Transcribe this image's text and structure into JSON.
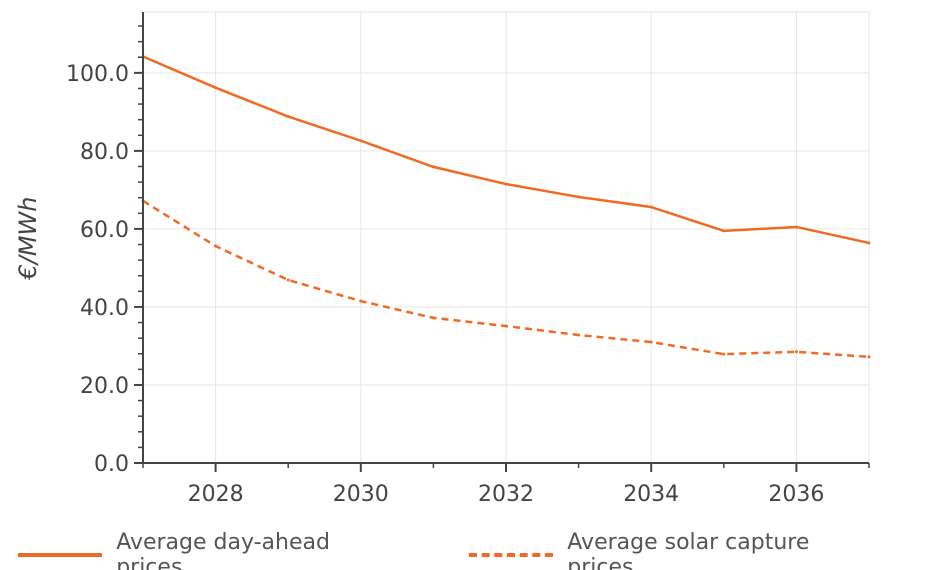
{
  "chart_data": {
    "type": "line",
    "title": "",
    "xlabel": "",
    "ylabel": "€/MWh",
    "xlim": [
      2027,
      2037
    ],
    "ylim": [
      0,
      115.6
    ],
    "x": [
      2027,
      2028,
      2029,
      2030,
      2031,
      2032,
      2033,
      2034,
      2035,
      2036,
      2037
    ],
    "x_ticks": [
      "2028",
      "2030",
      "2032",
      "2034",
      "2036"
    ],
    "y_ticks": [
      "0.0",
      "20.0",
      "40.0",
      "60.0",
      "80.0",
      "100.0"
    ],
    "grid": true,
    "legend_placement": "bottom",
    "series": [
      {
        "name": "Average day-ahead prices",
        "style": "solid",
        "color": "#F06A23",
        "values": [
          104.2,
          96.2,
          88.8,
          82.6,
          75.9,
          71.5,
          68.2,
          65.6,
          59.5,
          60.5,
          56.4
        ]
      },
      {
        "name": "Average solar capture prices",
        "style": "dashed",
        "color": "#F06A23",
        "values": [
          67.2,
          55.6,
          46.9,
          41.5,
          37.2,
          35.1,
          32.8,
          31.0,
          27.9,
          28.5,
          27.2
        ]
      }
    ]
  }
}
